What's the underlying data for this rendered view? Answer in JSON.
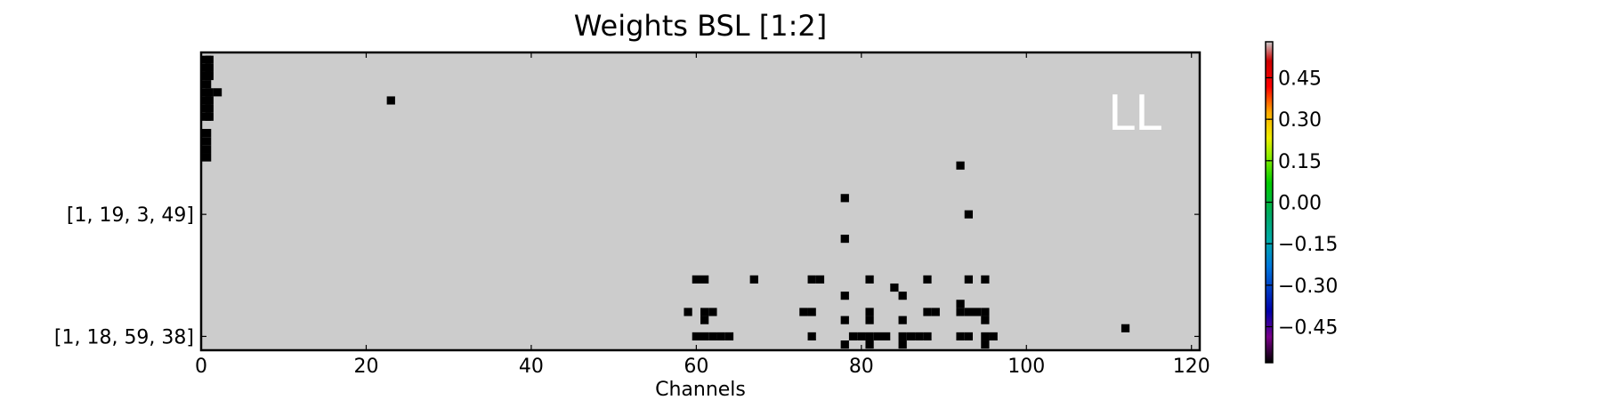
{
  "chart_data": {
    "type": "heatmap",
    "title": "Weights BSL [1:2]",
    "xlabel": "Channels",
    "ylabel": "",
    "xlim": [
      0,
      121
    ],
    "n_rows": 36,
    "x_ticks": [
      0,
      20,
      40,
      60,
      80,
      100,
      120
    ],
    "y_tick_labels": [
      {
        "row": 20,
        "label": "[1, 19, 3, 49]"
      },
      {
        "row": 35,
        "label": "[1, 18, 59, 38]"
      }
    ],
    "corner_label": "LL",
    "background_value": 0.0,
    "background_color": "#cccccc",
    "cell_color": "#000000",
    "colorbar": {
      "ticks": [
        0.45,
        0.3,
        0.15,
        0.0,
        -0.15,
        -0.3,
        -0.45
      ],
      "tick_labels": [
        "0.45",
        "0.30",
        "0.15",
        "0.00",
        "−0.15",
        "−0.30",
        "−0.45"
      ],
      "range": [
        -0.58,
        0.58
      ],
      "colormap": "nipy_spectral"
    },
    "black_cells": [
      [
        1,
        0
      ],
      [
        1,
        1
      ],
      [
        2,
        0
      ],
      [
        2,
        1
      ],
      [
        3,
        0
      ],
      [
        3,
        1
      ],
      [
        4,
        0
      ],
      [
        5,
        0
      ],
      [
        5,
        1
      ],
      [
        5,
        2
      ],
      [
        6,
        0
      ],
      [
        6,
        1
      ],
      [
        6,
        23
      ],
      [
        7,
        0
      ],
      [
        7,
        1
      ],
      [
        8,
        0
      ],
      [
        8,
        1
      ],
      [
        10,
        0
      ],
      [
        11,
        0
      ],
      [
        12,
        0
      ],
      [
        13,
        0
      ],
      [
        14,
        92
      ],
      [
        18,
        78
      ],
      [
        20,
        93
      ],
      [
        23,
        78
      ],
      [
        28,
        60
      ],
      [
        28,
        61
      ],
      [
        28,
        67
      ],
      [
        28,
        74
      ],
      [
        28,
        75
      ],
      [
        28,
        81
      ],
      [
        28,
        88
      ],
      [
        28,
        93
      ],
      [
        28,
        95
      ],
      [
        29,
        84
      ],
      [
        30,
        78
      ],
      [
        30,
        85
      ],
      [
        31,
        92
      ],
      [
        32,
        59
      ],
      [
        32,
        61
      ],
      [
        32,
        62
      ],
      [
        32,
        73
      ],
      [
        32,
        74
      ],
      [
        32,
        81
      ],
      [
        32,
        88
      ],
      [
        32,
        89
      ],
      [
        32,
        92
      ],
      [
        32,
        93
      ],
      [
        32,
        94
      ],
      [
        32,
        95
      ],
      [
        33,
        61
      ],
      [
        33,
        78
      ],
      [
        33,
        81
      ],
      [
        33,
        85
      ],
      [
        33,
        95
      ],
      [
        34,
        112
      ],
      [
        35,
        60
      ],
      [
        35,
        61
      ],
      [
        35,
        62
      ],
      [
        35,
        63
      ],
      [
        35,
        64
      ],
      [
        35,
        74
      ],
      [
        35,
        79
      ],
      [
        35,
        80
      ],
      [
        35,
        81
      ],
      [
        35,
        82
      ],
      [
        35,
        83
      ],
      [
        35,
        85
      ],
      [
        35,
        86
      ],
      [
        35,
        87
      ],
      [
        35,
        88
      ],
      [
        35,
        92
      ],
      [
        35,
        93
      ],
      [
        35,
        95
      ],
      [
        35,
        96
      ],
      [
        36,
        78
      ],
      [
        36,
        81
      ],
      [
        36,
        85
      ],
      [
        36,
        95
      ]
    ]
  }
}
